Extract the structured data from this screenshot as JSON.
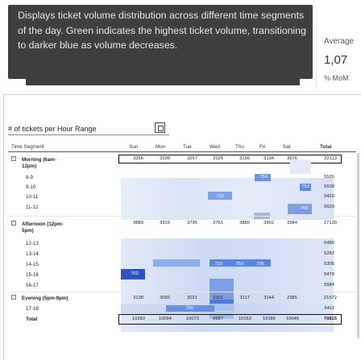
{
  "tooltip": {
    "text": "Displays ticket volume distribution across different time segments of the day. Green indicates the highest ticket volume, transitioning to darker blue as volume decreases."
  },
  "kpi": {
    "label": "Average",
    "value": "1,07",
    "sub": "% MoM"
  },
  "matrix": {
    "title": "# of tickets per Hour Range",
    "columns": [
      "Time Segment",
      "Sun",
      "Mon",
      "Tue",
      "Wed",
      "Thu",
      "Fri",
      "Sat",
      "Total"
    ],
    "groups": [
      {
        "label": "Morning (6am-12pm)",
        "values": [
          "3256",
          "3109",
          "3257",
          "3125",
          "3156",
          "3134",
          "3076",
          "22113"
        ]
      },
      {
        "label": "Afternoon (12pm-5pm)",
        "values": [
          "3889",
          "3919",
          "3795",
          "3761",
          "3880",
          "3902",
          "3984",
          "27130"
        ]
      },
      {
        "label": "Evening (5pm-9pm)",
        "values": [
          "3138",
          "3066",
          "3021",
          "3101",
          "3117",
          "3144",
          "2985",
          "21572"
        ]
      }
    ],
    "hours": [
      {
        "label": "8-9",
        "total": "5526",
        "visible": [
          "754"
        ]
      },
      {
        "label": "9-10",
        "total": "5538",
        "visible": [
          "753"
        ]
      },
      {
        "label": "10-11",
        "total": "5420",
        "visible": [
          "732"
        ]
      },
      {
        "label": "11-12",
        "total": "5629",
        "visible": [
          "749"
        ]
      },
      {
        "label": "12-13",
        "total": "5480"
      },
      {
        "label": "13-14",
        "total": "5282",
        "visible": [
          "723",
          "750",
          "736"
        ]
      },
      {
        "label": "14-15",
        "total": "5305",
        "visible": [
          "702"
        ]
      },
      {
        "label": "15-16",
        "total": "5479"
      },
      {
        "label": "16-17",
        "total": "5584"
      },
      {
        "label": "17-18",
        "total": "5411",
        "visible": [
          "730"
        ]
      }
    ],
    "total": {
      "label": "Total",
      "values": [
        "10283",
        "10094",
        "10073",
        "9987",
        "10153",
        "10180",
        "10045",
        "70815"
      ]
    }
  }
}
